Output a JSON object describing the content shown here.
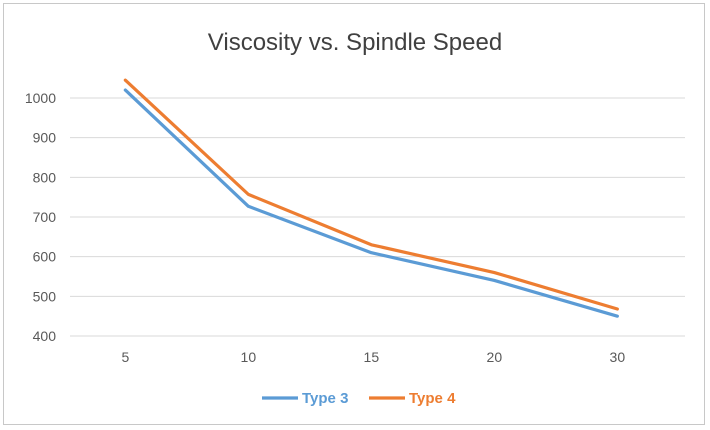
{
  "chart_data": {
    "type": "line",
    "title": "Viscosity vs. Spindle Speed",
    "xlabel": "",
    "ylabel": "",
    "categories": [
      "5",
      "10",
      "15",
      "20",
      "30"
    ],
    "ylim": [
      400,
      1000
    ],
    "yticks": [
      400,
      500,
      600,
      700,
      800,
      900,
      1000
    ],
    "grid": true,
    "legend_position": "bottom",
    "series": [
      {
        "name": "Type 3",
        "color": "#5b9bd5",
        "values": [
          1020,
          727,
          610,
          540,
          450
        ]
      },
      {
        "name": "Type 4",
        "color": "#ed7d31",
        "values": [
          1045,
          757,
          630,
          560,
          468
        ]
      }
    ]
  }
}
